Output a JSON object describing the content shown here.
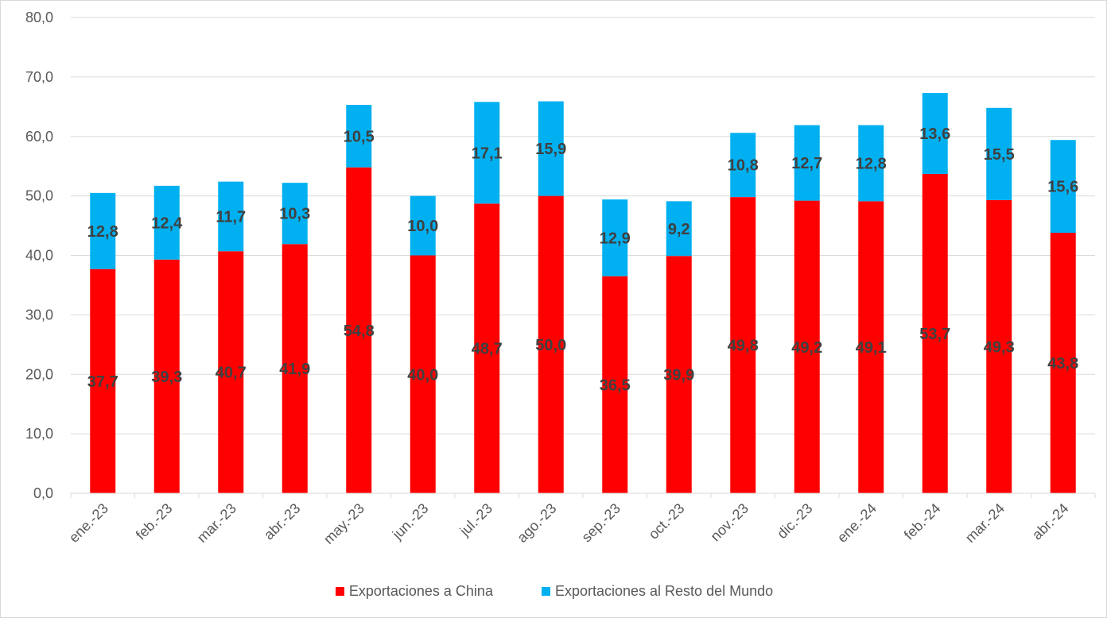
{
  "chart_data": {
    "type": "bar",
    "stacked": true,
    "title": "",
    "xlabel": "",
    "ylabel": "",
    "ylim": [
      0,
      80
    ],
    "ytick_step": 10,
    "ytick_labels": [
      "0,0",
      "10,0",
      "20,0",
      "30,0",
      "40,0",
      "50,0",
      "60,0",
      "70,0",
      "80,0"
    ],
    "grid": true,
    "legend_position": "bottom",
    "categories": [
      "ene.-23",
      "feb.-23",
      "mar.-23",
      "abr.-23",
      "may.-23",
      "jun.-23",
      "jul.-23",
      "ago.-23",
      "sep.-23",
      "oct.-23",
      "nov.-23",
      "dic.-23",
      "ene.-24",
      "feb.-24",
      "mar.-24",
      "abr.-24"
    ],
    "series": [
      {
        "name": "Exportaciones a China",
        "color": "#ff0000",
        "values": [
          37.7,
          39.3,
          40.7,
          41.9,
          54.8,
          40.0,
          48.7,
          50.0,
          36.5,
          39.9,
          49.8,
          49.2,
          49.1,
          53.7,
          49.3,
          43.8
        ],
        "labels": [
          "37,7",
          "39,3",
          "40,7",
          "41,9",
          "54,8",
          "40,0",
          "48,7",
          "50,0",
          "36,5",
          "39,9",
          "49,8",
          "49,2",
          "49,1",
          "53,7",
          "49,3",
          "43,8"
        ]
      },
      {
        "name": "Exportaciones al Resto del Mundo",
        "color": "#00b0f0",
        "values": [
          12.8,
          12.4,
          11.7,
          10.3,
          10.5,
          10.0,
          17.1,
          15.9,
          12.9,
          9.2,
          10.8,
          12.7,
          12.8,
          13.6,
          15.5,
          15.6
        ],
        "labels": [
          "12,8",
          "12,4",
          "11,7",
          "10,3",
          "10,5",
          "10,0",
          "17,1",
          "15,9",
          "12,9",
          "9,2",
          "10,8",
          "12,7",
          "12,8",
          "13,6",
          "15,5",
          "15,6"
        ]
      }
    ]
  }
}
